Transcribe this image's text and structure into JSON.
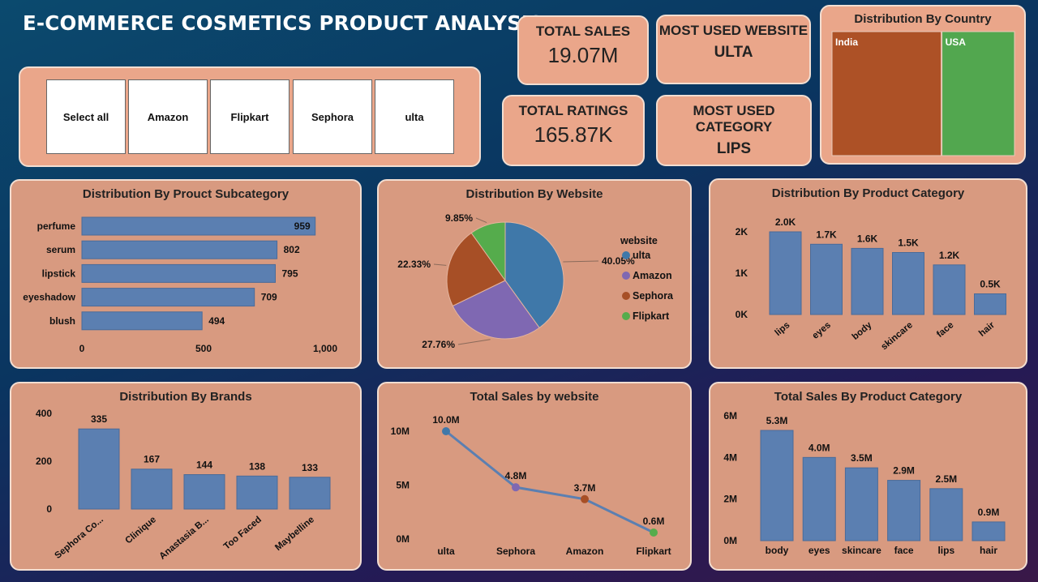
{
  "page": {
    "title": "E-COMMERCE COSMETICS PRODUCT ANALYSIS"
  },
  "slicer": {
    "options": [
      "Select all",
      "Amazon",
      "Flipkart",
      "Sephora",
      "ulta"
    ]
  },
  "kpis": {
    "total_sales": {
      "label": "TOTAL SALES",
      "value": "19.07M"
    },
    "total_ratings": {
      "label": "TOTAL RATINGS",
      "value": "165.87K"
    },
    "most_used_website": {
      "label": "MOST USED WEBSITE",
      "value": "ULTA"
    },
    "most_used_category": {
      "label": "MOST USED CATEGORY",
      "value": "LIPS"
    }
  },
  "colors": {
    "bar": "#5b7fb1",
    "card": "#d89a80",
    "kpi_card": "#eaa68a",
    "card_border": "#f2ded2"
  },
  "chart_data": [
    {
      "id": "country",
      "type": "treemap",
      "title": "Distribution By Country",
      "categories": [
        "India",
        "USA"
      ],
      "weights": [
        0.6,
        0.4
      ],
      "colors": [
        "#ad5126",
        "#52a74f"
      ]
    },
    {
      "id": "subcategory",
      "type": "bar",
      "orientation": "horizontal",
      "title": "Distribution By Prouct Subcategory",
      "categories": [
        "perfume",
        "serum",
        "lipstick",
        "eyeshadow",
        "blush"
      ],
      "values": [
        959,
        802,
        795,
        709,
        494
      ],
      "labels": [
        "959",
        "802",
        "795",
        "709",
        "494"
      ],
      "xlim": [
        0,
        1000
      ],
      "xticks": [
        "0",
        "500",
        "1,000"
      ],
      "color": "#5b7fb1"
    },
    {
      "id": "website_pie",
      "type": "pie",
      "title": "Distribution By Website",
      "legend_title": "website",
      "legend_position": "right",
      "categories": [
        "ulta",
        "Amazon",
        "Sephora",
        "Flipkart"
      ],
      "values": [
        40.05,
        27.76,
        22.33,
        9.85
      ],
      "labels": [
        "40.05%",
        "27.76%",
        "22.33%",
        "9.85%"
      ],
      "colors": [
        "#3f78a9",
        "#7f68b2",
        "#a74f26",
        "#55ac4c"
      ]
    },
    {
      "id": "category",
      "type": "bar",
      "title": "Distribution By Product Category",
      "categories": [
        "lips",
        "eyes",
        "body",
        "skincare",
        "face",
        "hair"
      ],
      "values": [
        2000,
        1700,
        1600,
        1500,
        1200,
        500
      ],
      "labels": [
        "2.0K",
        "1.7K",
        "1.6K",
        "1.5K",
        "1.2K",
        "0.5K"
      ],
      "ylim": [
        0,
        2000
      ],
      "yticks": [
        "0K",
        "1K",
        "2K"
      ],
      "color": "#5b7fb1"
    },
    {
      "id": "brands",
      "type": "bar",
      "title": "Distribution By Brands",
      "categories": [
        "Sephora Co...",
        "Clinique",
        "Anastasia B...",
        "Too Faced",
        "Maybelline"
      ],
      "values": [
        335,
        167,
        144,
        138,
        133
      ],
      "labels": [
        "335",
        "167",
        "144",
        "138",
        "133"
      ],
      "ylim": [
        0,
        400
      ],
      "yticks": [
        "0",
        "200",
        "400"
      ],
      "color": "#5b7fb1"
    },
    {
      "id": "sales_website",
      "type": "line",
      "title": "Total Sales by website",
      "categories": [
        "ulta",
        "Sephora",
        "Amazon",
        "Flipkart"
      ],
      "values": [
        10.0,
        4.8,
        3.7,
        0.6
      ],
      "labels": [
        "10.0M",
        "4.8M",
        "3.7M",
        "0.6M"
      ],
      "ylim": [
        0,
        10
      ],
      "yticks": [
        "0M",
        "5M",
        "10M"
      ],
      "point_colors": [
        "#3f78a9",
        "#7f68b2",
        "#a74f26",
        "#55ac4c"
      ],
      "color": "#5b7fb1"
    },
    {
      "id": "sales_category",
      "type": "bar",
      "title": "Total Sales By Product Category",
      "categories": [
        "body",
        "eyes",
        "skincare",
        "face",
        "lips",
        "hair"
      ],
      "values": [
        5.3,
        4.0,
        3.5,
        2.9,
        2.5,
        0.9
      ],
      "labels": [
        "5.3M",
        "4.0M",
        "3.5M",
        "2.9M",
        "2.5M",
        "0.9M"
      ],
      "ylim": [
        0,
        6
      ],
      "yticks": [
        "0M",
        "2M",
        "4M",
        "6M"
      ],
      "color": "#5b7fb1"
    }
  ]
}
